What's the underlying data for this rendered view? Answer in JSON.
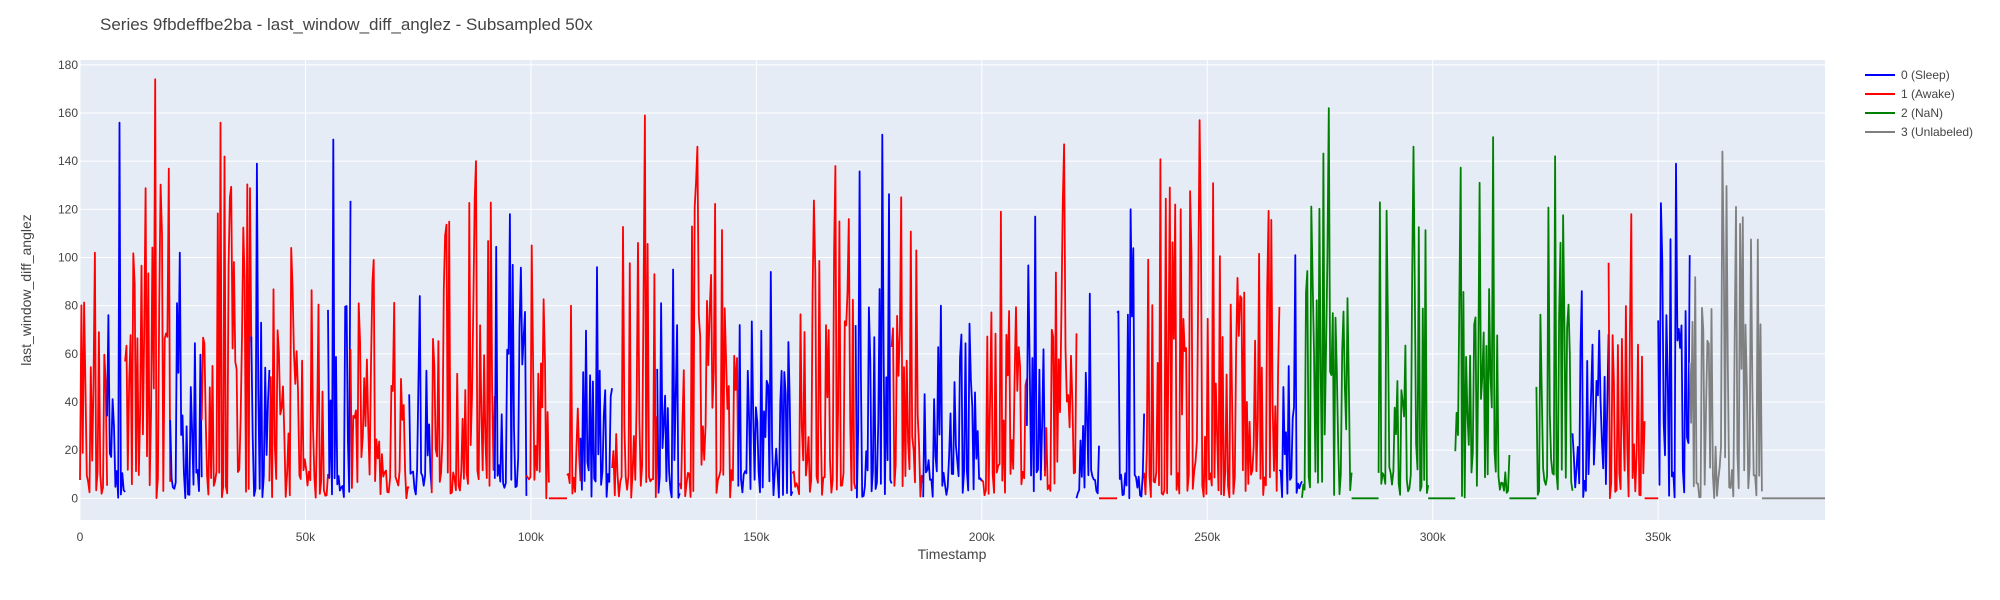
{
  "chart_data": {
    "type": "line",
    "title": "Series 9fbdeffbe2ba - last_window_diff_anglez - Subsampled 50x",
    "xlabel": "Timestamp",
    "ylabel": "last_window_diff_anglez",
    "xlim": [
      0,
      387000
    ],
    "ylim": [
      -9,
      182
    ],
    "x_ticks": [
      {
        "value": 0,
        "label": "0"
      },
      {
        "value": 50000,
        "label": "50k"
      },
      {
        "value": 100000,
        "label": "100k"
      },
      {
        "value": 150000,
        "label": "150k"
      },
      {
        "value": 200000,
        "label": "200k"
      },
      {
        "value": 250000,
        "label": "250k"
      },
      {
        "value": 300000,
        "label": "300k"
      },
      {
        "value": 350000,
        "label": "350k"
      }
    ],
    "y_ticks": [
      0,
      20,
      40,
      60,
      80,
      100,
      120,
      140,
      160,
      180
    ],
    "grid": true,
    "legend_position": "right-top",
    "series": [
      {
        "name": "0 (Sleep)",
        "color": "#0000ff"
      },
      {
        "name": "1 (Awake)",
        "color": "#ff0000"
      },
      {
        "name": "2 (NaN)",
        "color": "#008000"
      },
      {
        "name": "3 (Unlabeled)",
        "color": "#808080"
      }
    ],
    "segments": [
      {
        "series": 1,
        "x_start": 0,
        "x_end": 6000,
        "peak": 102
      },
      {
        "series": 0,
        "x_start": 6000,
        "x_end": 10000,
        "peak": 156
      },
      {
        "series": 1,
        "x_start": 10000,
        "x_end": 20000,
        "peak": 174
      },
      {
        "series": 0,
        "x_start": 20000,
        "x_end": 27000,
        "peak": 102
      },
      {
        "series": 1,
        "x_start": 27000,
        "x_end": 38000,
        "peak": 156
      },
      {
        "series": 0,
        "x_start": 38000,
        "x_end": 42000,
        "peak": 139
      },
      {
        "series": 1,
        "x_start": 42000,
        "x_end": 55000,
        "peak": 104
      },
      {
        "series": 0,
        "x_start": 55000,
        "x_end": 60000,
        "peak": 149
      },
      {
        "series": 1,
        "x_start": 60000,
        "x_end": 73000,
        "peak": 99
      },
      {
        "series": 0,
        "x_start": 73000,
        "x_end": 78000,
        "peak": 84
      },
      {
        "series": 1,
        "x_start": 78000,
        "x_end": 92000,
        "peak": 140
      },
      {
        "series": 0,
        "x_start": 92000,
        "x_end": 99000,
        "peak": 118
      },
      {
        "series": 1,
        "x_start": 99000,
        "x_end": 104000,
        "peak": 105
      },
      {
        "series": 1,
        "x_start": 104000,
        "x_end": 108000,
        "peak": 0,
        "flat": true
      },
      {
        "series": 1,
        "x_start": 108000,
        "x_end": 111000,
        "peak": 80
      },
      {
        "series": 0,
        "x_start": 111000,
        "x_end": 118000,
        "peak": 96
      },
      {
        "series": 1,
        "x_start": 118000,
        "x_end": 128000,
        "peak": 159
      },
      {
        "series": 0,
        "x_start": 128000,
        "x_end": 133000,
        "peak": 95
      },
      {
        "series": 1,
        "x_start": 133000,
        "x_end": 146000,
        "peak": 146
      },
      {
        "series": 0,
        "x_start": 146000,
        "x_end": 158000,
        "peak": 94
      },
      {
        "series": 1,
        "x_start": 158000,
        "x_end": 172000,
        "peak": 138
      },
      {
        "series": 0,
        "x_start": 172000,
        "x_end": 180000,
        "peak": 151
      },
      {
        "series": 1,
        "x_start": 180000,
        "x_end": 187000,
        "peak": 125
      },
      {
        "series": 0,
        "x_start": 187000,
        "x_end": 200000,
        "peak": 80
      },
      {
        "series": 1,
        "x_start": 200000,
        "x_end": 210000,
        "peak": 119
      },
      {
        "series": 0,
        "x_start": 210000,
        "x_end": 214000,
        "peak": 117
      },
      {
        "series": 1,
        "x_start": 214000,
        "x_end": 221000,
        "peak": 147
      },
      {
        "series": 0,
        "x_start": 221000,
        "x_end": 226000,
        "peak": 85
      },
      {
        "series": 1,
        "x_start": 226000,
        "x_end": 230000,
        "peak": 0,
        "flat": true
      },
      {
        "series": 0,
        "x_start": 230000,
        "x_end": 236000,
        "peak": 120
      },
      {
        "series": 1,
        "x_start": 236000,
        "x_end": 266000,
        "peak": 157
      },
      {
        "series": 0,
        "x_start": 266000,
        "x_end": 271000,
        "peak": 101
      },
      {
        "series": 2,
        "x_start": 271000,
        "x_end": 282000,
        "peak": 162
      },
      {
        "series": 2,
        "x_start": 282000,
        "x_end": 288000,
        "peak": 0,
        "flat": true
      },
      {
        "series": 2,
        "x_start": 288000,
        "x_end": 299000,
        "peak": 146
      },
      {
        "series": 2,
        "x_start": 299000,
        "x_end": 305000,
        "peak": 0,
        "flat": true
      },
      {
        "series": 2,
        "x_start": 305000,
        "x_end": 317000,
        "peak": 150
      },
      {
        "series": 2,
        "x_start": 317000,
        "x_end": 323000,
        "peak": 0,
        "flat": true
      },
      {
        "series": 2,
        "x_start": 323000,
        "x_end": 331000,
        "peak": 142
      },
      {
        "series": 0,
        "x_start": 331000,
        "x_end": 339000,
        "peak": 86
      },
      {
        "series": 1,
        "x_start": 339000,
        "x_end": 347000,
        "peak": 118
      },
      {
        "series": 1,
        "x_start": 347000,
        "x_end": 350000,
        "peak": 0,
        "flat": true
      },
      {
        "series": 0,
        "x_start": 350000,
        "x_end": 357000,
        "peak": 139
      },
      {
        "series": 3,
        "x_start": 357000,
        "x_end": 373000,
        "peak": 144
      },
      {
        "series": 3,
        "x_start": 373000,
        "x_end": 387000,
        "peak": 0,
        "flat": true
      }
    ]
  }
}
